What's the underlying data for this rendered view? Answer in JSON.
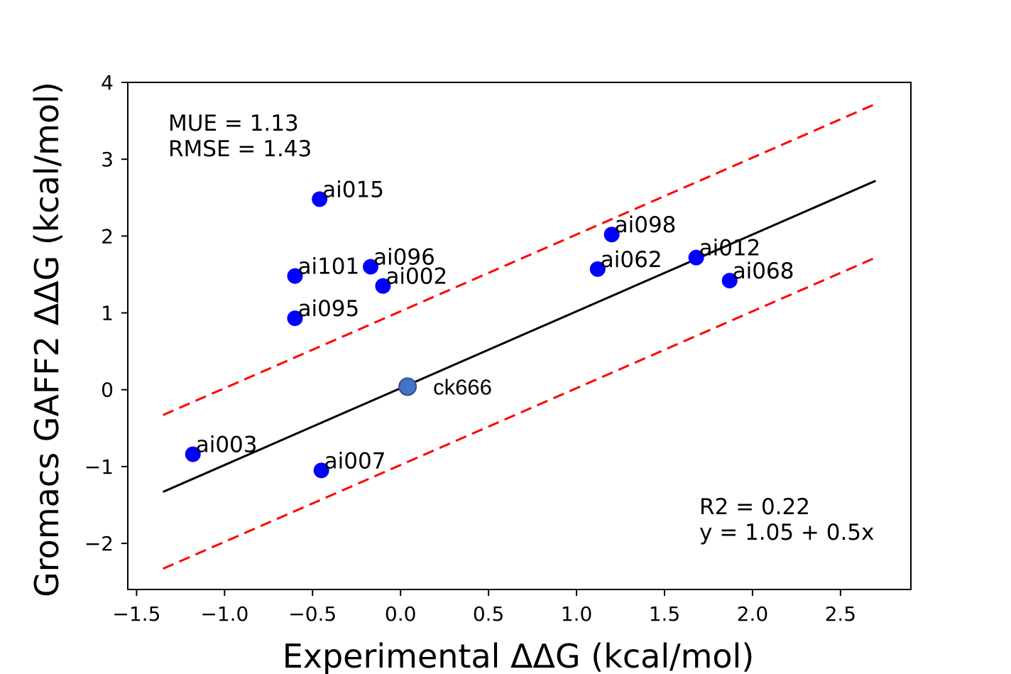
{
  "chart_data": {
    "type": "scatter",
    "xlabel": "Experimental ΔΔG (kcal/mol)",
    "ylabel": "Gromacs GAFF2 ΔΔG (kcal/mol)",
    "xlim": [
      -1.55,
      2.9
    ],
    "ylim": [
      -2.6,
      4.0
    ],
    "xticks": [
      -1.5,
      -1.0,
      -0.5,
      0.0,
      0.5,
      1.0,
      1.5,
      2.0,
      2.5
    ],
    "xtick_labels": [
      "−1.5",
      "−1.0",
      "−0.5",
      "0.0",
      "0.5",
      "1.0",
      "1.5",
      "2.0",
      "2.5"
    ],
    "yticks": [
      -2,
      -1,
      0,
      1,
      2,
      3,
      4
    ],
    "ytick_labels": [
      "−2",
      "−1",
      "0",
      "1",
      "2",
      "3",
      "4"
    ],
    "grid": false,
    "points": [
      {
        "label": "ai015",
        "x": -0.46,
        "y": 2.48
      },
      {
        "label": "ai098",
        "x": 1.2,
        "y": 2.02
      },
      {
        "label": "ai012",
        "x": 1.68,
        "y": 1.72
      },
      {
        "label": "ai062",
        "x": 1.12,
        "y": 1.57
      },
      {
        "label": "ai096",
        "x": -0.17,
        "y": 1.6
      },
      {
        "label": "ai101",
        "x": -0.6,
        "y": 1.48
      },
      {
        "label": "ai068",
        "x": 1.87,
        "y": 1.42
      },
      {
        "label": "ai002",
        "x": -0.1,
        "y": 1.35
      },
      {
        "label": "ai095",
        "x": -0.6,
        "y": 0.93
      },
      {
        "label": "ai003",
        "x": -1.18,
        "y": -0.84
      },
      {
        "label": "ai007",
        "x": -0.45,
        "y": -1.05
      }
    ],
    "highlight_point": {
      "label": "ck666",
      "x": 0.04,
      "y": 0.04
    },
    "fit_line": {
      "x_range": [
        -1.35,
        2.7
      ],
      "intercept": 0.02,
      "slope": 1.0
    },
    "error_band_offset": 1.0,
    "stats": {
      "mue": "MUE = 1.13",
      "rmse": "RMSE = 1.43",
      "r2": "R2 = 0.22",
      "equation": "y = 1.05 + 0.5x"
    },
    "colors": {
      "points": "#0000ff",
      "highlight": "#4472c4",
      "fit_line": "#000000",
      "band_lines": "#ff0000"
    }
  }
}
